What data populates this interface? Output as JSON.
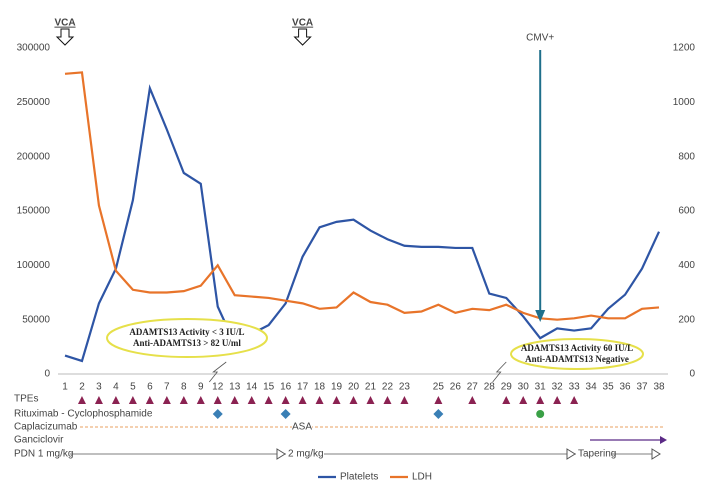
{
  "chart_data": {
    "type": "line",
    "categories": [
      1,
      2,
      3,
      4,
      5,
      6,
      7,
      8,
      9,
      12,
      13,
      14,
      15,
      16,
      17,
      18,
      19,
      20,
      21,
      22,
      23,
      null,
      25,
      26,
      27,
      28,
      29,
      30,
      31,
      32,
      33,
      34,
      35,
      36,
      37,
      38
    ],
    "series": [
      {
        "name": "Platelets",
        "color": "#2e55a5",
        "values": [
          17000,
          12000,
          65000,
          97000,
          160000,
          263000,
          225000,
          185000,
          175000,
          62000,
          28000,
          37000,
          45000,
          65000,
          108000,
          135000,
          140000,
          142000,
          132000,
          124000,
          118000,
          117000,
          117000,
          116000,
          116000,
          74000,
          70000,
          53000,
          33000,
          42000,
          40000,
          42000,
          60000,
          73000,
          97000,
          131000
        ]
      },
      {
        "name": "LDH",
        "color": "#e8742a",
        "axis": "y2",
        "values": [
          1105,
          1110,
          620,
          380,
          310,
          300,
          300,
          305,
          325,
          400,
          290,
          285,
          280,
          270,
          260,
          240,
          245,
          300,
          265,
          255,
          225,
          230,
          255,
          225,
          240,
          235,
          255,
          225,
          205,
          200,
          205,
          215,
          205,
          205,
          240,
          245
        ]
      }
    ],
    "ylim": [
      0,
      300000
    ],
    "yticks": [
      0,
      50000,
      100000,
      150000,
      200000,
      250000,
      300000
    ],
    "y2lim": [
      0,
      1200
    ],
    "y2ticks": [
      0,
      200,
      400,
      600,
      800,
      1000,
      1200
    ],
    "annotations": {
      "vca": {
        "text": "VCA",
        "days": [
          1,
          17
        ]
      },
      "cmv": {
        "text": "CMV+",
        "day": 31
      },
      "note1": [
        "ADAMTS13 Activity < 3 IU/L",
        "Anti-ADAMTS13 > 82 U/ml"
      ],
      "note2": [
        "ADAMTS13 Activity 60 IU/L",
        "Anti-ADAMTS13 Negative"
      ]
    },
    "treatments": {
      "tpe": {
        "name": "TPEs",
        "days": [
          2,
          3,
          4,
          5,
          6,
          7,
          8,
          9,
          12,
          13,
          14,
          15,
          16,
          17,
          18,
          19,
          20,
          21,
          22,
          23,
          25,
          27,
          29,
          30,
          31,
          32,
          33
        ]
      },
      "ritux": {
        "name": "Rituximab - Cyclophosphamide",
        "days": [
          12,
          16,
          25,
          31
        ],
        "shapes": [
          "diamond",
          "diamond",
          "diamond",
          "circle"
        ]
      },
      "capla": {
        "name": "Caplacizumab",
        "asa": "ASA"
      },
      "ganci": {
        "name": "Ganciclovir"
      },
      "pdn": {
        "name": "PDN 1 mg/kg",
        "mid": "2 mg/kg",
        "end": "Tapering"
      }
    },
    "legend": "bottom"
  }
}
